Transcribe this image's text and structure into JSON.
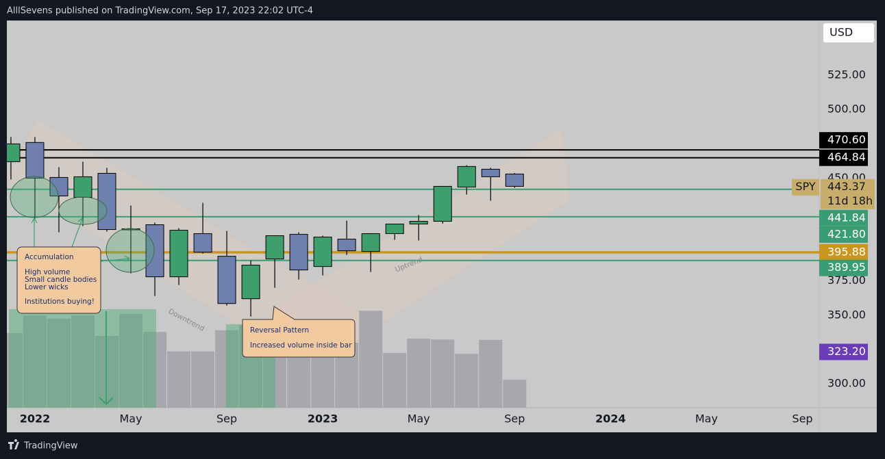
{
  "header": "AlllSevens published on TradingView.com, Sep 17, 2023 22:02 UTC-4",
  "footer": "TradingView",
  "currency": "USD",
  "chart_data": {
    "type": "candlestick",
    "x": [
      -1,
      0,
      1,
      2,
      3,
      4,
      5,
      6,
      7,
      8,
      9,
      10,
      11,
      12,
      13,
      14,
      15,
      16,
      17,
      18,
      19,
      20
    ],
    "open": [
      462,
      476,
      450.5,
      436,
      453.5,
      413,
      416,
      378,
      409.5,
      393,
      362,
      391,
      409,
      385.5,
      405.5,
      396.5,
      409.5,
      416.5,
      418.5,
      443.5,
      456.5,
      453
    ],
    "high": [
      480,
      480,
      458,
      462,
      457.5,
      430,
      417.5,
      413.5,
      432,
      411.5,
      390,
      408,
      410.5,
      408,
      419,
      409.7,
      415.1,
      423,
      444.3,
      459.4,
      457.5,
      453.7
    ],
    "low": [
      449,
      420.5,
      410.5,
      415,
      411,
      380.5,
      364,
      372,
      395,
      357,
      349,
      370,
      376,
      379,
      394,
      381.5,
      405,
      404.5,
      416.8,
      438,
      433.5,
      442.9
    ],
    "close": [
      475,
      450,
      437,
      451,
      412.5,
      413,
      378,
      412,
      396,
      358.5,
      386.5,
      408,
      383,
      407,
      397,
      409.5,
      416.5,
      418.5,
      444,
      458.5,
      451,
      444
    ],
    "volume": [
      1870,
      2310,
      2230,
      2310,
      1800,
      2350,
      1900,
      1410,
      1410,
      1940,
      2070,
      1710,
      1710,
      1290,
      1630,
      2430,
      1370,
      1730,
      1710,
      1350,
      1700,
      700
    ],
    "up_color": "#3f9f6c",
    "down_color": "#6f7fae",
    "volume_color": "#a7a8ad",
    "xlim": [
      -1.17,
      32.7
    ],
    "xticks": [
      {
        "value": 0,
        "label": "2022"
      },
      {
        "value": 4,
        "label": "May"
      },
      {
        "value": 8,
        "label": "Sep"
      },
      {
        "value": 12,
        "label": "2023"
      },
      {
        "value": 16,
        "label": "May"
      },
      {
        "value": 20,
        "label": "Sep"
      },
      {
        "value": 24,
        "label": "2024"
      },
      {
        "value": 28,
        "label": "May"
      },
      {
        "value": 32,
        "label": "Sep"
      }
    ],
    "ylim": [
      282.5,
      565
    ],
    "yticks": [
      {
        "value": 525,
        "label": "525.00"
      },
      {
        "value": 500,
        "label": "500.00"
      },
      {
        "value": 450,
        "label": "450.00"
      },
      {
        "value": 375,
        "label": "375.00"
      },
      {
        "value": 350,
        "label": "350.00"
      },
      {
        "value": 300,
        "label": "300.00"
      }
    ],
    "volume_lim": [
      0,
      3000
    ],
    "levels": {
      "values": [
        470.6,
        464.84,
        441.84,
        421.8,
        395.88,
        389.95,
        323.2
      ],
      "value_labels": [
        "470.60",
        "464.84",
        "441.84",
        "421.80",
        "395.88",
        "389.95",
        "323.20"
      ],
      "colors": [
        "#000000",
        "#000000",
        "#3a9c72",
        "#3a9c72",
        "#c9961f",
        "#3a9c72",
        "#6a3cb8"
      ],
      "lines": [
        true,
        true,
        true,
        true,
        true,
        true,
        false
      ]
    },
    "symbol": {
      "name": "SPY",
      "last": 443.37,
      "last_label": "443.37",
      "countdown": "11d 18h",
      "color": "#c8ad6a"
    },
    "annotations": {
      "accumulation": [
        "Accumulation",
        "High volume",
        "Small candle bodies",
        "Lower wicks",
        "Institutions buying!"
      ],
      "reversal": [
        "Reversal Pattern",
        "Increased volume inside bar"
      ],
      "downtrend": "Downtrend",
      "uptrend": "Uptrend"
    }
  }
}
